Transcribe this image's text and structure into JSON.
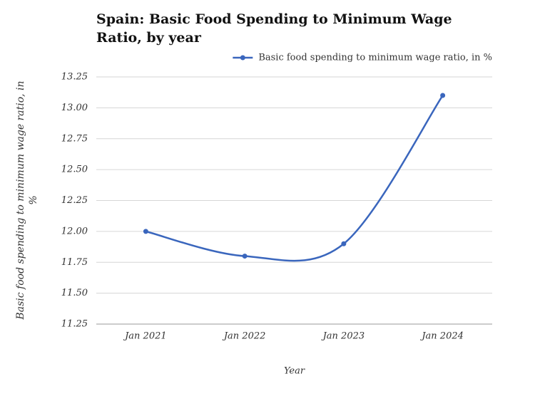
{
  "chart_data": {
    "type": "line",
    "title": "Spain: Basic Food Spending to Minimum Wage Ratio, by year",
    "x_label": "Year",
    "y_label": "Basic food spending to minimum wage ratio, in %",
    "categories": [
      "Jan 2021",
      "Jan 2022",
      "Jan 2023",
      "Jan 2024"
    ],
    "series": [
      {
        "name": "Basic food spending to minimum wage ratio, in %",
        "color": "#3a66bd",
        "values": [
          12.0,
          11.8,
          11.9,
          13.1
        ]
      }
    ],
    "ylim": [
      11.25,
      13.25
    ],
    "yticks": [
      11.25,
      {
        "value": 11.5,
        "label": "11.50"
      },
      11.75,
      {
        "value": 12,
        "label": "12.00"
      },
      12.25,
      {
        "value": 12.5,
        "label": "12.50"
      },
      12.75,
      {
        "value": 13,
        "label": "13.00"
      },
      13.25
    ],
    "grid": true,
    "legend": "top-right"
  }
}
